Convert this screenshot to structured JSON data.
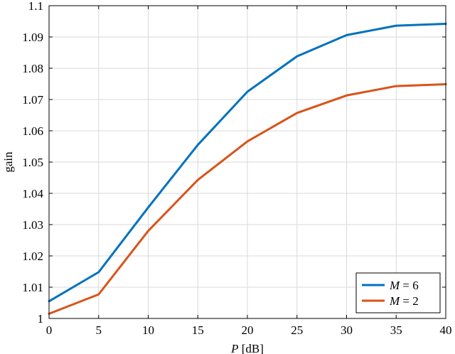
{
  "chart_data": {
    "type": "line",
    "x": [
      0,
      5,
      10,
      15,
      20,
      25,
      30,
      35,
      40
    ],
    "series": [
      {
        "name_var": "M",
        "name_val": "= 6",
        "color": "#0072bd",
        "values": [
          1.0055,
          1.0148,
          1.0355,
          1.0555,
          1.0725,
          1.0838,
          1.0906,
          1.0936,
          1.0942
        ]
      },
      {
        "name_var": "M",
        "name_val": "= 2",
        "color": "#d95319",
        "values": [
          1.0015,
          1.0077,
          1.028,
          1.0443,
          1.0566,
          1.0657,
          1.0713,
          1.0743,
          1.0749
        ]
      }
    ],
    "xlabel_var": "P",
    "xlabel_unit": " [dB]",
    "ylabel": "gain",
    "xlim": [
      0,
      40
    ],
    "ylim": [
      1,
      1.1
    ],
    "xticks": [
      0,
      5,
      10,
      15,
      20,
      25,
      30,
      35,
      40
    ],
    "yticks": [
      1,
      1.01,
      1.02,
      1.03,
      1.04,
      1.05,
      1.06,
      1.07,
      1.08,
      1.09,
      1.1
    ],
    "xtick_labels": [
      "0",
      "5",
      "10",
      "15",
      "20",
      "25",
      "30",
      "35",
      "40"
    ],
    "ytick_labels": [
      "1",
      "1.01",
      "1.02",
      "1.03",
      "1.04",
      "1.05",
      "1.06",
      "1.07",
      "1.08",
      "1.09",
      "1.1"
    ],
    "grid": true,
    "legend_position": "bottom-right"
  }
}
